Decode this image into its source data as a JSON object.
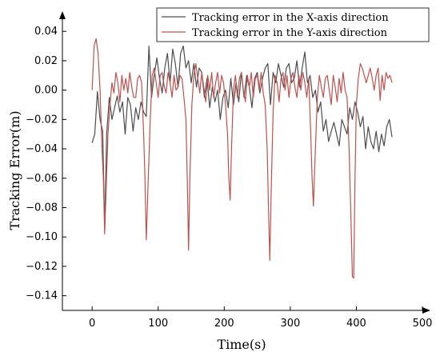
{
  "chart_data": {
    "type": "line",
    "xlabel": "Time(s)",
    "ylabel": "Tracking Error(m)",
    "xlim": [
      -45,
      500
    ],
    "ylim": [
      -0.15,
      0.045
    ],
    "xticks": [
      0,
      100,
      200,
      300,
      400,
      500
    ],
    "yticks": [
      0.04,
      0.02,
      0.0,
      -0.02,
      -0.04,
      -0.06,
      -0.08,
      -0.1,
      -0.12,
      -0.14
    ],
    "xtick_labels": [
      "0",
      "100",
      "200",
      "300",
      "400",
      "500"
    ],
    "ytick_labels": [
      "0.04",
      "0.02",
      "0.00",
      "−0.02",
      "−0.04",
      "−0.06",
      "−0.08",
      "−0.10",
      "−0.12",
      "−0.14"
    ],
    "grid": false,
    "legend_position": "top-right",
    "series": [
      {
        "name": "Tracking error in the X-axis direction",
        "color": "#4d4d4d",
        "x": [
          0,
          4,
          8,
          12,
          16,
          19,
          22,
          26,
          30,
          34,
          38,
          42,
          46,
          50,
          54,
          58,
          62,
          66,
          70,
          74,
          78,
          82,
          86,
          90,
          94,
          98,
          102,
          106,
          110,
          114,
          118,
          122,
          126,
          130,
          134,
          138,
          142,
          146,
          150,
          154,
          158,
          162,
          166,
          170,
          174,
          178,
          182,
          186,
          190,
          194,
          198,
          202,
          206,
          210,
          214,
          218,
          222,
          226,
          230,
          234,
          238,
          242,
          246,
          250,
          254,
          258,
          262,
          266,
          270,
          274,
          278,
          282,
          286,
          290,
          294,
          298,
          302,
          306,
          310,
          314,
          318,
          322,
          326,
          330,
          334,
          338,
          342,
          346,
          350,
          354,
          358,
          362,
          366,
          370,
          374,
          378,
          382,
          386,
          390,
          394,
          398,
          402,
          406,
          410,
          414,
          418,
          422,
          426,
          430,
          434,
          438,
          442,
          446,
          450,
          454
        ],
        "y": [
          -0.036,
          -0.03,
          -0.001,
          -0.02,
          -0.028,
          -0.095,
          -0.03,
          -0.005,
          -0.02,
          -0.012,
          -0.004,
          -0.015,
          -0.008,
          -0.03,
          -0.005,
          -0.01,
          -0.028,
          -0.012,
          -0.02,
          -0.008,
          -0.015,
          -0.018,
          0.03,
          -0.005,
          0.01,
          0.022,
          0.008,
          -0.002,
          0.015,
          0.025,
          0.005,
          0.028,
          0.018,
          0.002,
          0.025,
          0.03,
          0.015,
          0.02,
          0.005,
          0.018,
          0.002,
          0.015,
          0.012,
          -0.005,
          0.008,
          -0.012,
          0.002,
          -0.008,
          0.0,
          -0.02,
          -0.005,
          0.0,
          -0.012,
          0.008,
          -0.01,
          0.005,
          -0.008,
          0.012,
          -0.005,
          0.01,
          0.002,
          -0.012,
          0.008,
          0.012,
          -0.002,
          0.008,
          0.015,
          0.018,
          -0.01,
          0.012,
          0.005,
          0.018,
          0.01,
          0.002,
          0.015,
          0.018,
          0.005,
          0.008,
          0.02,
          0.002,
          0.015,
          0.026,
          0.005,
          0.01,
          -0.005,
          0.0,
          -0.015,
          -0.008,
          -0.028,
          -0.02,
          -0.035,
          -0.028,
          -0.022,
          -0.03,
          -0.038,
          -0.02,
          -0.025,
          -0.03,
          -0.012,
          -0.02,
          -0.008,
          -0.015,
          -0.025,
          -0.018,
          -0.04,
          -0.025,
          -0.035,
          -0.04,
          -0.028,
          -0.042,
          -0.03,
          -0.038,
          -0.025,
          -0.02,
          -0.032
        ]
      },
      {
        "name": "Tracking error in the Y-axis direction",
        "color": "#c0504d",
        "x": [
          0,
          3,
          6,
          9,
          12,
          15,
          17,
          19,
          21,
          24,
          27,
          30,
          33,
          36,
          39,
          42,
          45,
          48,
          51,
          54,
          57,
          60,
          63,
          66,
          69,
          72,
          75,
          78,
          80,
          82,
          85,
          88,
          91,
          94,
          97,
          100,
          103,
          106,
          109,
          112,
          115,
          118,
          121,
          124,
          127,
          130,
          133,
          136,
          139,
          142,
          144,
          146,
          148,
          151,
          154,
          157,
          160,
          163,
          166,
          169,
          172,
          175,
          178,
          181,
          184,
          187,
          190,
          193,
          196,
          199,
          202,
          205,
          207,
          209,
          211,
          214,
          217,
          220,
          223,
          226,
          229,
          232,
          235,
          238,
          241,
          244,
          247,
          250,
          253,
          256,
          259,
          262,
          265,
          267,
          269,
          271,
          274,
          277,
          280,
          283,
          286,
          289,
          292,
          295,
          298,
          301,
          304,
          307,
          310,
          313,
          316,
          319,
          322,
          325,
          328,
          331,
          333,
          335,
          338,
          341,
          344,
          347,
          350,
          353,
          356,
          359,
          362,
          365,
          368,
          371,
          374,
          377,
          380,
          383,
          386,
          389,
          392,
          394,
          396,
          398,
          400,
          403,
          406,
          409,
          412,
          415,
          418,
          421,
          424,
          427,
          430,
          433,
          436,
          439,
          442,
          445,
          448,
          451,
          454
        ],
        "y": [
          0.0,
          0.03,
          0.035,
          0.025,
          0.0,
          -0.04,
          -0.06,
          -0.098,
          -0.07,
          -0.03,
          -0.01,
          0.005,
          -0.002,
          0.012,
          0.005,
          -0.008,
          0.01,
          0.0,
          0.008,
          -0.002,
          0.012,
          0.002,
          -0.005,
          -0.005,
          0.008,
          0.01,
          0.005,
          -0.03,
          -0.06,
          -0.102,
          -0.06,
          -0.02,
          0.01,
          0.015,
          0.005,
          -0.005,
          0.01,
          0.012,
          0.003,
          -0.002,
          0.012,
          0.005,
          -0.005,
          0.01,
          0.0,
          0.002,
          0.01,
          0.008,
          -0.005,
          -0.02,
          -0.06,
          -0.109,
          -0.06,
          -0.01,
          0.01,
          0.018,
          0.008,
          -0.002,
          0.012,
          0.002,
          -0.008,
          0.01,
          0.0,
          0.012,
          -0.005,
          0.005,
          0.012,
          -0.002,
          0.01,
          0.005,
          -0.01,
          -0.03,
          -0.06,
          -0.075,
          -0.04,
          0.0,
          0.01,
          -0.005,
          0.008,
          0.012,
          0.0,
          -0.008,
          0.01,
          0.002,
          0.012,
          -0.005,
          0.008,
          0.01,
          0.0,
          0.012,
          -0.002,
          -0.01,
          -0.04,
          -0.08,
          -0.116,
          -0.07,
          -0.015,
          0.01,
          0.005,
          -0.008,
          0.008,
          0.012,
          0.0,
          0.01,
          -0.005,
          0.008,
          0.012,
          0.002,
          -0.005,
          0.01,
          0.0,
          0.012,
          0.005,
          -0.005,
          0.008,
          -0.03,
          -0.06,
          -0.079,
          -0.04,
          -0.005,
          0.01,
          0.002,
          -0.005,
          0.008,
          0.01,
          0.0,
          -0.01,
          0.01,
          0.002,
          -0.008,
          0.008,
          -0.002,
          0.012,
          0.0,
          -0.005,
          -0.04,
          -0.09,
          -0.127,
          -0.128,
          -0.06,
          -0.01,
          0.008,
          0.018,
          0.015,
          0.01,
          0.005,
          0.01,
          0.015,
          0.008,
          0.0,
          0.01,
          0.015,
          -0.007,
          0.01,
          0.0,
          0.012,
          0.008,
          0.01,
          0.005
        ]
      }
    ]
  }
}
